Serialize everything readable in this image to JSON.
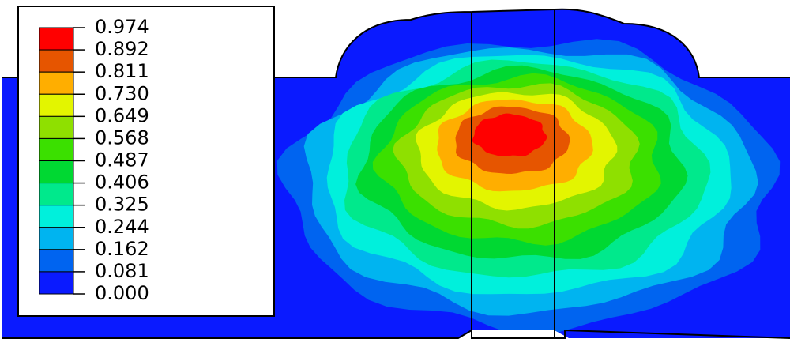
{
  "legend": {
    "labels": [
      "0.974",
      "0.892",
      "0.811",
      "0.730",
      "0.649",
      "0.568",
      "0.487",
      "0.406",
      "0.325",
      "0.244",
      "0.162",
      "0.081",
      "0.000"
    ],
    "colors": [
      "#ff0000",
      "#e65500",
      "#ffae00",
      "#e3f500",
      "#8fe000",
      "#3be000",
      "#00d832",
      "#00e98c",
      "#00f0dc",
      "#00b4f0",
      "#0064f0",
      "#0a1aff"
    ]
  }
}
